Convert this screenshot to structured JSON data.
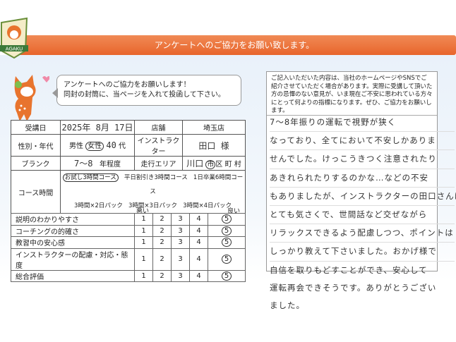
{
  "banner": {
    "title": "アンケートへのご協力をお願い致します。"
  },
  "logo": {
    "text": "AGAKU"
  },
  "bubble": {
    "line1": "アンケートへのご協力をお願いします！",
    "line2": "同封の封筒に、当ページを入れて投函して下さい。"
  },
  "form": {
    "date_label": "受講日",
    "date_value": "2025年 8月 17日",
    "store_label": "店舗",
    "store_value": "埼玉店",
    "gender_label": "性別・年代",
    "male": "男性",
    "female": "女性",
    "age": "40",
    "age_suffix": "代",
    "instructor_label": "インストラクター",
    "instructor_value": "田口 様",
    "blank_label": "ブランク",
    "blank_value": "7～8",
    "blank_suffix": "年程度",
    "area_label": "走行エリア",
    "area_value": "川口",
    "area_city": "市",
    "area_rest": "区 町 村",
    "course_label": "コース時間",
    "courses": [
      "お試し3時間コース",
      "平日割引き3時間コース",
      "1日卒業6時間コース",
      "3時間×2日パック",
      "3時間×3日パック",
      "3時間×4日パック"
    ],
    "selected_course": "お試し3時間コース"
  },
  "ratings": {
    "low_label": "悪い",
    "high_label": "良い",
    "scale": [
      "1",
      "2",
      "3",
      "4",
      "5"
    ],
    "items": [
      {
        "label": "説明のわかりやすさ",
        "value": 5
      },
      {
        "label": "コーチングの的確さ",
        "value": 5
      },
      {
        "label": "教習中の安心感",
        "value": 5
      },
      {
        "label": "インストラクターの配慮・対応・態度",
        "value": 5
      },
      {
        "label": "総合評価",
        "value": 5
      }
    ]
  },
  "notice": {
    "text": "ご記入いただいた内容は、当社のホームページやSNSでご紹介させていただく場合があります。実際に受講して頂いた方の忌憚のない意見が、いま現在ご不安に思われている方々にとって何よりの指標になります。ぜひ、ご協力をお願いします。"
  },
  "comment": {
    "lines": [
      "7～8年振りの運転で視野が狭く",
      "なっており、全てにおいて不安しかありま",
      "せんでした。けっこうきつく注意されたり",
      "あきれられたりするのかな…などの不安",
      "もありましたが、インストラクターの田口さんは",
      "とても気さくで、世間話など交ぜながら",
      "リラックスできるよう配慮しつつ、ポイントは",
      "しっかり教えて下さいました。おかげ様で",
      "自信を取りもどすことができ、安心して",
      "運転再会できそうです。ありがとうござい",
      "ました。"
    ]
  }
}
